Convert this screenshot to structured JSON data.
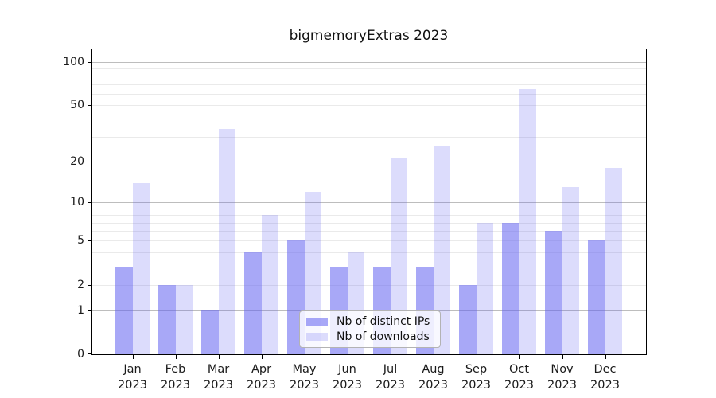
{
  "title": "bigmemoryExtras 2023",
  "chart_data": {
    "type": "bar",
    "title": "bigmemoryExtras 2023",
    "categories": [
      "Jan",
      "Feb",
      "Mar",
      "Apr",
      "May",
      "Jun",
      "Jul",
      "Aug",
      "Sep",
      "Oct",
      "Nov",
      "Dec"
    ],
    "year_label": "2023",
    "series": [
      {
        "name": "Nb of distinct IPs",
        "color": "rgba(96,96,240,0.55)",
        "values": [
          3,
          2,
          1,
          4,
          5,
          3,
          3,
          3,
          2,
          7,
          6,
          5
        ]
      },
      {
        "name": "Nb of downloads",
        "color": "rgba(96,96,240,0.22)",
        "values": [
          14,
          2,
          34,
          8,
          12,
          4,
          21,
          26,
          7,
          65,
          13,
          18
        ]
      }
    ],
    "xlabel": "",
    "ylabel": "",
    "yscale": "log1p",
    "ylim": [
      0,
      122
    ],
    "yticks": [
      100,
      50,
      20,
      10,
      5,
      2,
      1,
      0
    ],
    "grid": true,
    "grid_major_values": [
      1,
      10,
      100
    ],
    "grid_minor_values": [
      2,
      3,
      4,
      5,
      6,
      7,
      8,
      9,
      20,
      30,
      40,
      50,
      60,
      70,
      80,
      90
    ],
    "legend_position": "lower center"
  },
  "colors": {
    "major_grid": "#bdbdbd",
    "minor_grid": "#eaeaea",
    "spine": "#000000",
    "background": "#ffffff",
    "bar_base": "#6060f0"
  }
}
